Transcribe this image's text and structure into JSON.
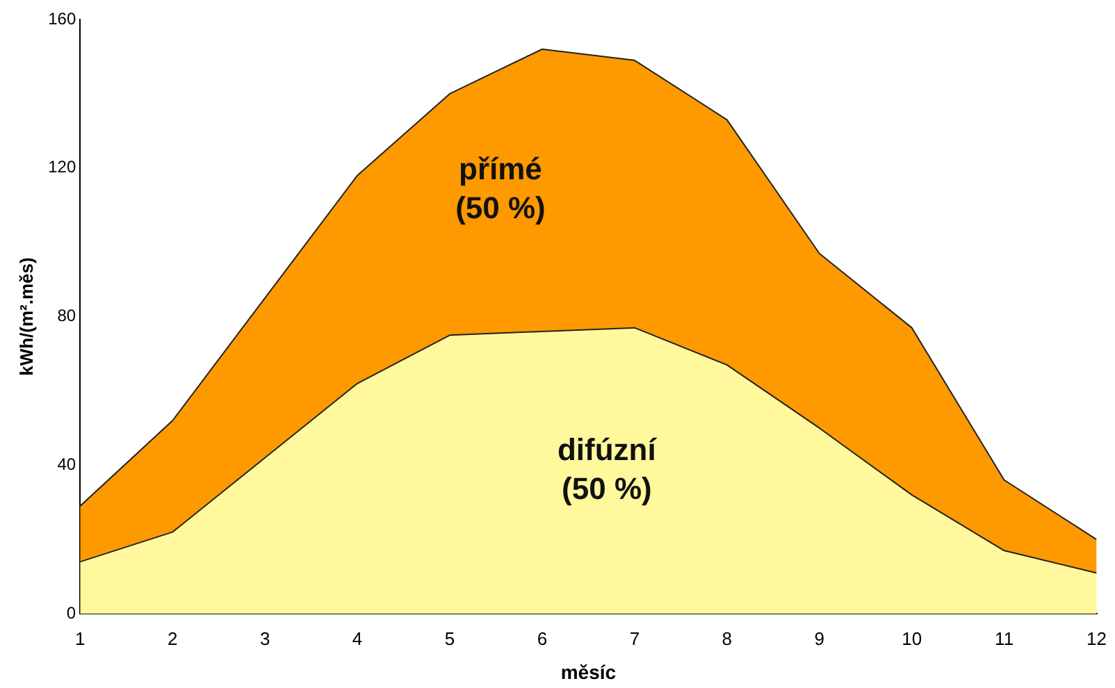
{
  "chart_data": {
    "type": "area",
    "stacked": true,
    "xlabel": "měsíc",
    "ylabel": "kWh/(m².měs)",
    "x": [
      1,
      2,
      3,
      4,
      5,
      6,
      7,
      8,
      9,
      10,
      11,
      12
    ],
    "series": [
      {
        "name": "difúzní (50 %)",
        "color": "#fff89c",
        "values": [
          14,
          22,
          42,
          62,
          75,
          76,
          77,
          67,
          50,
          32,
          17,
          11
        ]
      },
      {
        "name": "přímé (50 %)",
        "color": "#ff9900",
        "values": [
          15,
          30,
          43,
          56,
          65,
          76,
          72,
          66,
          47,
          45,
          19,
          9
        ]
      }
    ],
    "xlim": [
      1,
      12
    ],
    "xticks": [
      1,
      2,
      3,
      4,
      5,
      6,
      7,
      8,
      9,
      10,
      11,
      12
    ],
    "ylim": [
      0,
      160
    ],
    "yticks": [
      0,
      40,
      80,
      120,
      160
    ],
    "grid": false,
    "legend": false
  }
}
